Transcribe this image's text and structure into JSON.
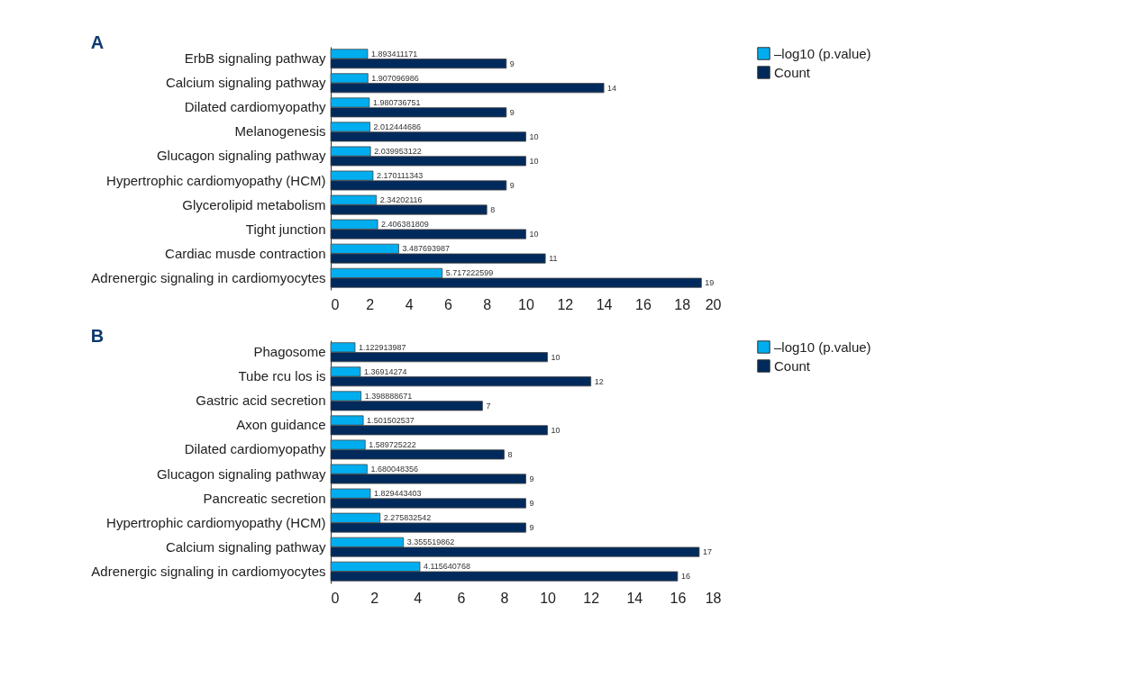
{
  "chart_data": [
    {
      "type": "bar",
      "title": "A",
      "orientation": "horizontal",
      "categories": [
        "ErbB signaling pathway",
        "Calcium signaling pathway",
        "Dilated cardiomyopathy",
        "Melanogenesis",
        "Glucagon signaling pathway",
        "Hypertrophic cardiomyopathy (HCM)",
        "Glycerolipid metabolism",
        "Tight junction",
        "Cardiac musde contraction",
        "Adrenergic signaling in cardiomyocytes"
      ],
      "series": [
        {
          "name": "–log10 (p.value)",
          "color": "#00aeef",
          "values": [
            1.893411171,
            1.907096986,
            1.980736751,
            2.012444686,
            2.039953122,
            2.170111343,
            2.34202116,
            2.406381809,
            3.487693987,
            5.717222599
          ]
        },
        {
          "name": "Count",
          "color": "#002a5c",
          "values": [
            9,
            14,
            9,
            10,
            10,
            9,
            8,
            10,
            11,
            19
          ]
        }
      ],
      "xlim": [
        0,
        20
      ],
      "xticks": [
        0,
        2,
        4,
        6,
        8,
        10,
        12,
        14,
        16,
        18,
        20
      ],
      "data_labels": true,
      "legend": "top right"
    },
    {
      "type": "bar",
      "title": "B",
      "orientation": "horizontal",
      "categories": [
        "Phagosome",
        "Tube rcu los is",
        "Gastric acid secretion",
        "Axon guidance",
        "Dilated cardiomyopathy",
        "Glucagon signaling pathway",
        "Pancreatic secretion",
        "Hypertrophic cardiomyopathy (HCM)",
        "Calcium signaling pathway",
        "Adrenergic signaling in cardiomyocytes"
      ],
      "series": [
        {
          "name": "–log10 (p.value)",
          "color": "#00aeef",
          "values": [
            1.122913987,
            1.36914274,
            1.398888671,
            1.501502537,
            1.589725222,
            1.680048356,
            1.829443403,
            2.275832542,
            3.355519862,
            4.115640768
          ]
        },
        {
          "name": "Count",
          "color": "#002a5c",
          "values": [
            10,
            12,
            7,
            10,
            8,
            9,
            9,
            9,
            17,
            16
          ]
        }
      ],
      "xlim": [
        0,
        18
      ],
      "xticks": [
        0,
        2,
        4,
        6,
        8,
        10,
        12,
        14,
        16,
        18
      ],
      "data_labels": true,
      "legend": "top right"
    }
  ]
}
